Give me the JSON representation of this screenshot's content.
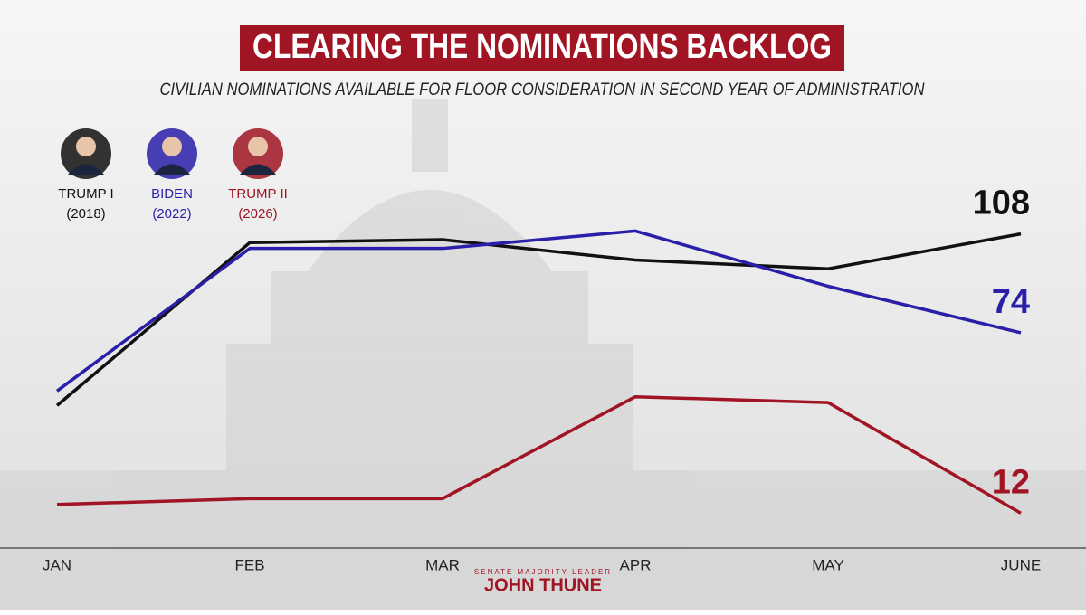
{
  "chart_data": {
    "type": "line",
    "title": "CLEARING THE NOMINATIONS BACKLOG",
    "subtitle": "CIVILIAN NOMINATIONS AVAILABLE FOR FLOOR CONSIDERATION IN SECOND YEAR OF ADMINISTRATION",
    "categories": [
      "JAN",
      "FEB",
      "MAR",
      "APR",
      "MAY",
      "JUNE"
    ],
    "ylim": [
      0,
      120
    ],
    "series": [
      {
        "name": "TRUMP I",
        "period": "(2018)",
        "color": "#111111",
        "values": [
          49,
          105,
          106,
          99,
          96,
          108
        ]
      },
      {
        "name": "BIDEN",
        "period": "(2022)",
        "color": "#2a1fa8",
        "values": [
          54,
          103,
          103,
          109,
          90,
          74
        ]
      },
      {
        "name": "TRUMP II",
        "period": "(2026)",
        "color": "#a01423",
        "values": [
          15,
          17,
          17,
          52,
          50,
          12
        ]
      }
    ],
    "footer": {
      "role": "SENATE MAJORITY LEADER",
      "name": "JOHN THUNE"
    }
  }
}
